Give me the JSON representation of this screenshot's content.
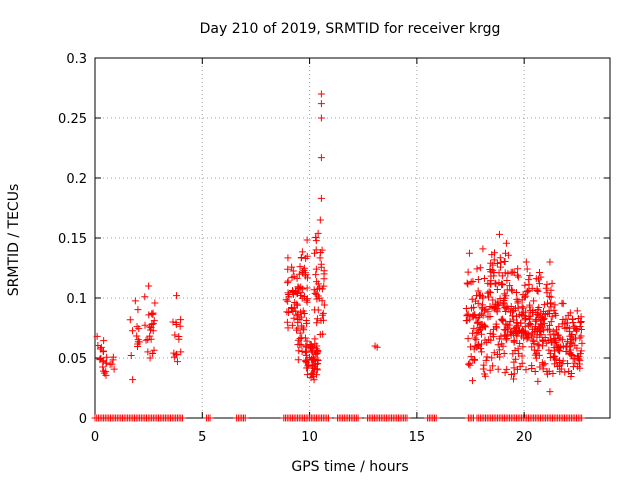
{
  "chart_data": {
    "type": "scatter",
    "title": "Day 210 of 2019, SRMTID for receiver krgg",
    "xlabel": "GPS time / hours",
    "ylabel": "SRMTID / TECUs",
    "xlim": [
      0,
      24
    ],
    "ylim": [
      0,
      0.3
    ],
    "xticks": [
      "0",
      "5",
      "10",
      "15",
      "20"
    ],
    "xtick_values": [
      0,
      5,
      10,
      15,
      20
    ],
    "yticks": [
      "0",
      "0.05",
      "0.1",
      "0.15",
      "0.2",
      "0.25",
      "0.3"
    ],
    "ytick_values": [
      0,
      0.05,
      0.1,
      0.15,
      0.2,
      0.25,
      0.3
    ],
    "grid": true,
    "marker": "+",
    "color": "#ff0000",
    "series": [
      {
        "name": "SRMTID",
        "clusters": [
          {
            "x": [
              0.1,
              0.5
            ],
            "y": [
              0.03,
              0.07
            ],
            "n": 14
          },
          {
            "x": [
              0.5,
              0.9
            ],
            "y": [
              0.033,
              0.055
            ],
            "n": 10
          },
          {
            "x": [
              1.6,
              2.1
            ],
            "y": [
              0.025,
              0.11
            ],
            "n": 14
          },
          {
            "x": [
              2.3,
              2.8
            ],
            "y": [
              0.04,
              0.11
            ],
            "n": 22
          },
          {
            "x": [
              3.6,
              4.0
            ],
            "y": [
              0.027,
              0.102
            ],
            "n": 14
          },
          {
            "x": [
              8.9,
              9.5
            ],
            "y": [
              0.05,
              0.145
            ],
            "n": 36
          },
          {
            "x": [
              9.4,
              9.9
            ],
            "y": [
              0.045,
              0.15
            ],
            "n": 60
          },
          {
            "x": [
              9.8,
              10.4
            ],
            "y": [
              0.03,
              0.07
            ],
            "n": 60
          },
          {
            "x": [
              10.2,
              10.7
            ],
            "y": [
              0.06,
              0.16
            ],
            "n": 40
          },
          {
            "x": [
              17.3,
              18.3
            ],
            "y": [
              0.02,
              0.145
            ],
            "n": 90
          },
          {
            "x": [
              18.3,
              19.3
            ],
            "y": [
              0.03,
              0.155
            ],
            "n": 110
          },
          {
            "x": [
              19.3,
              20.3
            ],
            "y": [
              0.03,
              0.13
            ],
            "n": 110
          },
          {
            "x": [
              20.3,
              21.3
            ],
            "y": [
              0.025,
              0.13
            ],
            "n": 110
          },
          {
            "x": [
              21.3,
              22.7
            ],
            "y": [
              0.03,
              0.1
            ],
            "n": 120
          }
        ],
        "points": [
          {
            "x": 10.55,
            "y": 0.27
          },
          {
            "x": 10.55,
            "y": 0.262
          },
          {
            "x": 10.55,
            "y": 0.25
          },
          {
            "x": 10.55,
            "y": 0.217
          },
          {
            "x": 10.55,
            "y": 0.183
          },
          {
            "x": 10.5,
            "y": 0.165
          },
          {
            "x": 13.05,
            "y": 0.06
          },
          {
            "x": 13.15,
            "y": 0.059
          },
          {
            "x": 0.1,
            "y": 0.068
          },
          {
            "x": 2.5,
            "y": 0.11
          },
          {
            "x": 3.8,
            "y": 0.102
          },
          {
            "x": 18.85,
            "y": 0.153
          },
          {
            "x": 21.2,
            "y": 0.13
          },
          {
            "x": 21.2,
            "y": 0.022
          },
          {
            "x": 20.1,
            "y": 0.13
          }
        ],
        "zero_segments": [
          [
            0.0,
            4.1
          ],
          [
            5.2,
            5.4
          ],
          [
            6.6,
            7.0
          ],
          [
            8.8,
            10.9
          ],
          [
            11.3,
            12.3
          ],
          [
            12.7,
            14.6
          ],
          [
            15.5,
            15.9
          ],
          [
            17.4,
            17.7
          ],
          [
            17.8,
            22.7
          ]
        ]
      }
    ]
  }
}
